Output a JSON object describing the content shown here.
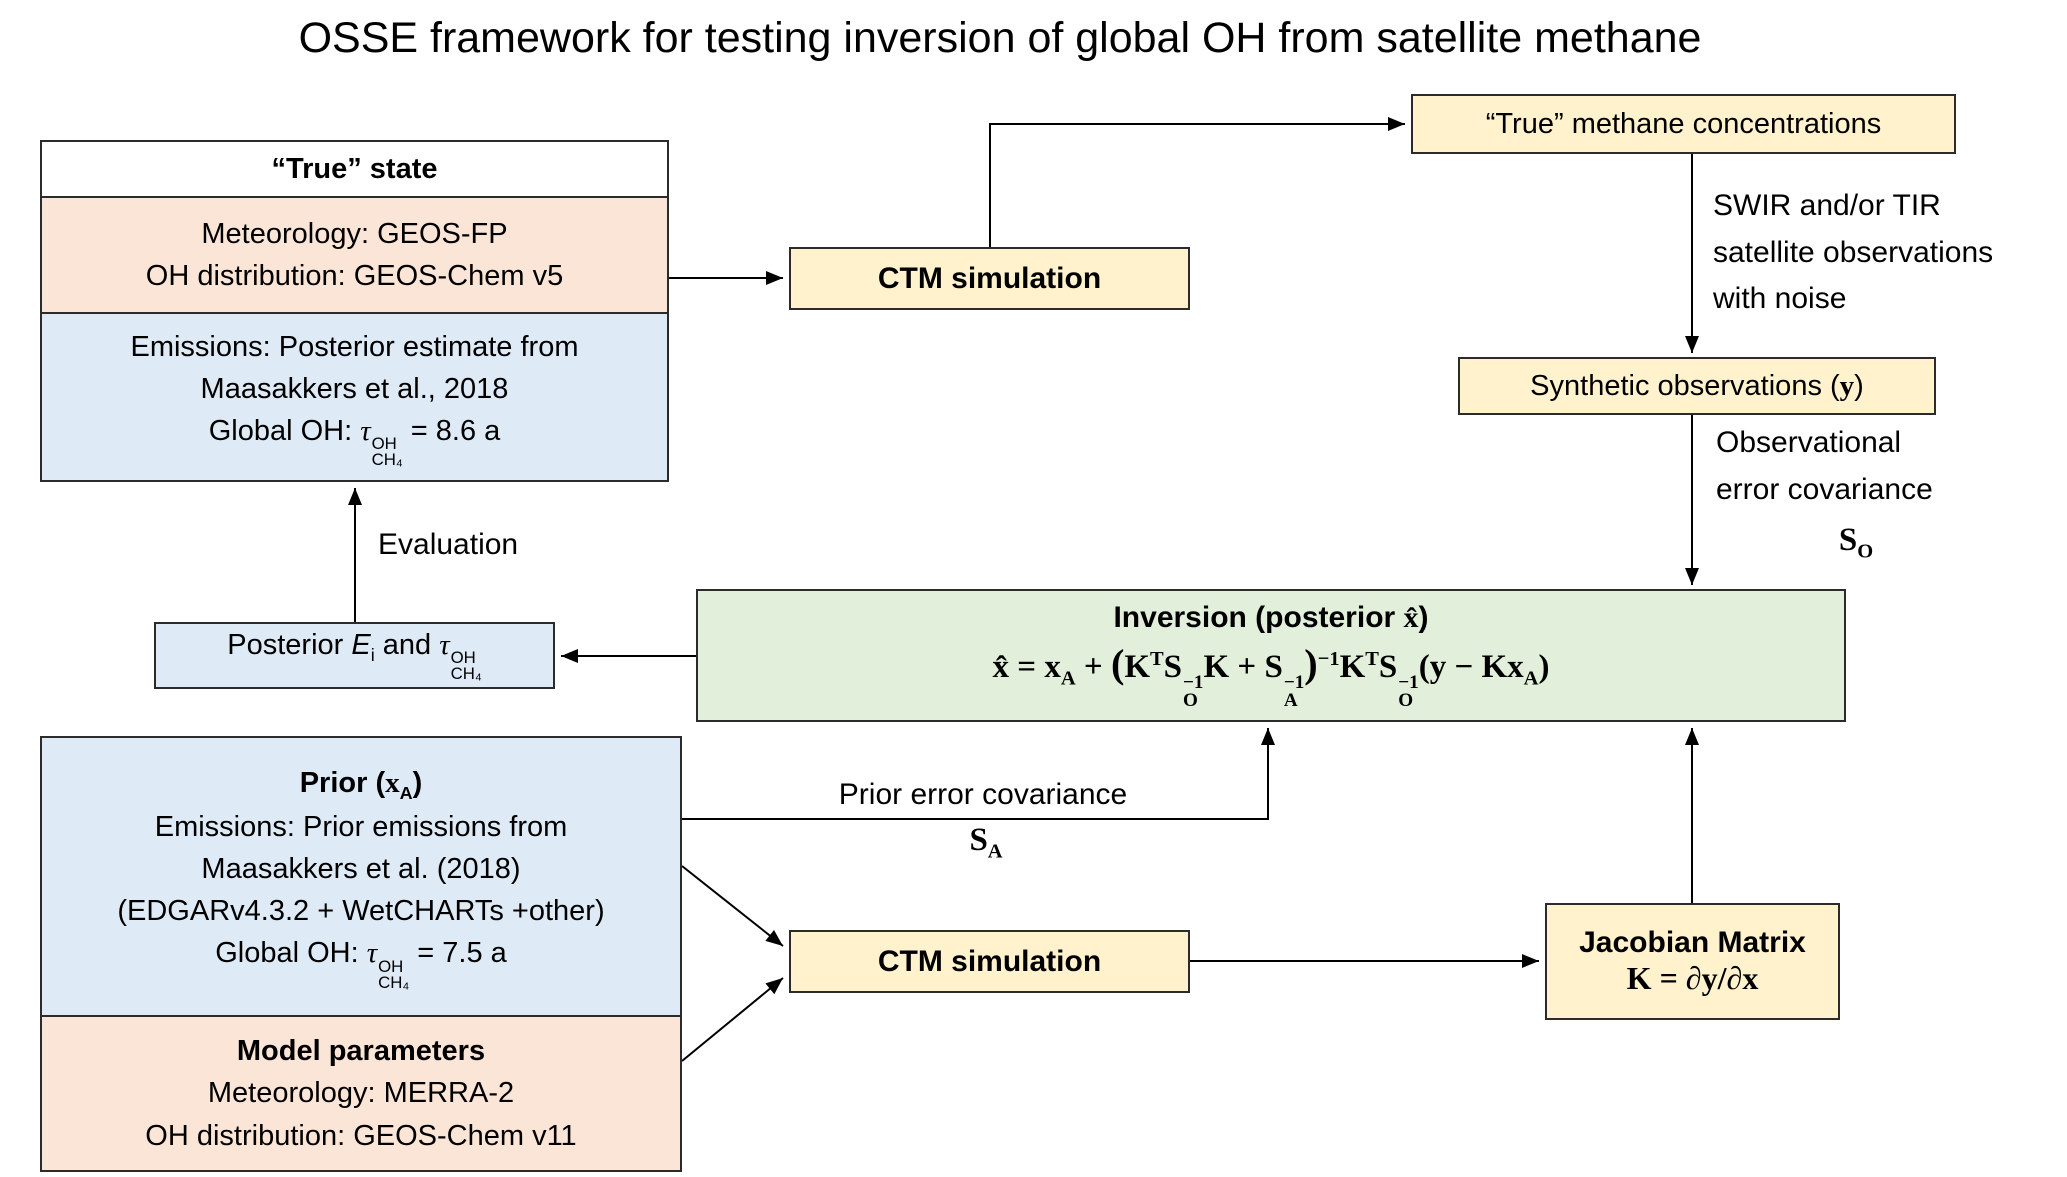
{
  "title": "OSSE framework for testing inversion of global OH from satellite methane",
  "colors": {
    "box_yellow": "#FFF2CC",
    "box_blue": "#DEEAF6",
    "box_pink": "#FBE5D6",
    "box_green": "#E2EFDA",
    "arrow": "#000000"
  },
  "true_state": {
    "header": "“True” state",
    "meteorology_line1": "Meteorology: GEOS-FP",
    "meteorology_line2": "OH distribution: GEOS-Chem v5",
    "emissions_line1": "Emissions: Posterior  estimate  from",
    "emissions_line2": "Maasakkers et al., 2018",
    "emissions_line3_html": "Global OH: <i class='m'>τ</i><span class='stk'><span>OH</span><span>CH₄</span></span> = 8.6 a"
  },
  "ctm_top": {
    "label": "CTM simulation"
  },
  "true_methane": {
    "label": "“True” methane concentrations"
  },
  "swir_note": {
    "line1": "SWIR and/or TIR",
    "line2": "satellite observations",
    "line3": "with noise"
  },
  "synthetic_obs": {
    "label_html": "Synthetic observations (<span class='m'><b>y</b></span>)"
  },
  "obs_error": {
    "line1": "Observational",
    "line2": "error covariance",
    "symbol_html": "S<sub>O</sub>"
  },
  "inversion": {
    "title_html": "Inversion (posterior <span class='m'>x̂</span>)",
    "formula_html": "x̂ = x<sub>A</sub> + <span class='bigp'>(</span>K<sup>T</sup>S<span class='stk'><span>−1</span><span>O</span></span>K + S<span class='stk'><span>−1</span><span>A</span></span><span class='bigp'>)</span><sup>−1</sup>K<sup>T</sup>S<span class='stk'><span>−1</span><span>O</span></span>(y − Kx<sub>A</sub>)"
  },
  "posterior": {
    "label_html": "Posterior <i>E</i><sub>i</sub> and <i class='m'>τ</i><span class='stk'><span>OH</span><span>CH₄</span></span>"
  },
  "evaluation": {
    "label": "Evaluation"
  },
  "prior": {
    "title_html": "Prior (<span class='m'>x</span><sub>A</sub>)",
    "line1": "Emissions: Prior  emissions  from",
    "line2": "Maasakkers et  al.  (2018)",
    "line3": "(EDGARv4.3.2 + WetCHARTs +other)",
    "line4_html": "Global OH: <i class='m'>τ</i><span class='stk'><span>OH</span><span>CH₄</span></span> = 7.5 a",
    "model_header": "Model parameters",
    "model_line1": "Meteorology: MERRA-2",
    "model_line2": "OH distribution: GEOS-Chem v11"
  },
  "prior_error": {
    "label": "Prior error covariance",
    "symbol_html": "S<sub>A</sub>"
  },
  "ctm_bottom": {
    "label": "CTM simulation"
  },
  "jacobian": {
    "line1": "Jacobian Matrix",
    "line2_html": "K = ∂y/∂x"
  }
}
